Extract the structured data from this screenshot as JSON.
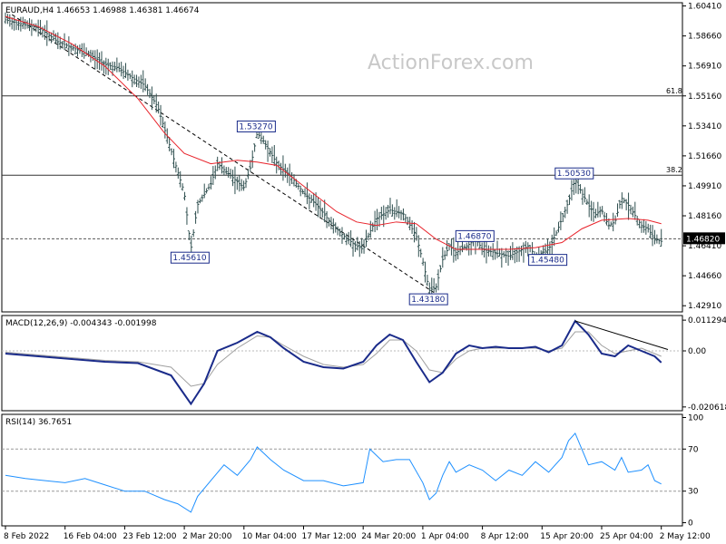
{
  "chart_data": [
    {
      "type": "candlestick",
      "title": "EURAUD,H4  1.46653 1.46988 1.46381 1.46674",
      "watermark": "ActionForex.com",
      "ylim": [
        1.4255,
        1.606
      ],
      "yticks": [
        1.6041,
        1.5866,
        1.5691,
        1.5516,
        1.5341,
        1.5166,
        1.4991,
        1.4816,
        1.4641,
        1.4466,
        1.4291
      ],
      "yticks_labels": [
        "1.60410",
        "1.58660",
        "1.56910",
        "1.55160",
        "1.53410",
        "1.51660",
        "1.49910",
        "1.48160",
        "1.46410",
        "1.44660",
        "1.42910"
      ],
      "current_price": 1.4682,
      "current_price_label": "1.46820",
      "x_index_range": [
        0,
        100
      ],
      "xticks": [
        {
          "label": "8 Feb 2022",
          "i": 0
        },
        {
          "label": "16 Feb 04:00",
          "i": 9
        },
        {
          "label": "23 Feb 12:00",
          "i": 18
        },
        {
          "label": "2 Mar 20:00",
          "i": 27
        },
        {
          "label": "10 Mar 04:00",
          "i": 36
        },
        {
          "label": "17 Mar 12:00",
          "i": 45
        },
        {
          "label": "24 Mar 20:00",
          "i": 54
        },
        {
          "label": "1 Apr 04:00",
          "i": 63
        },
        {
          "label": "8 Apr 12:00",
          "i": 72
        },
        {
          "label": "15 Apr 20:00",
          "i": 81
        },
        {
          "label": "25 Apr 04:00",
          "i": 90
        },
        {
          "label": "2 May 12:00",
          "i": 99
        }
      ],
      "price_path": [
        [
          0,
          1.596
        ],
        [
          3,
          1.593
        ],
        [
          5,
          1.5915
        ],
        [
          8,
          1.583
        ],
        [
          10,
          1.58
        ],
        [
          13,
          1.575
        ],
        [
          15,
          1.57
        ],
        [
          17,
          1.568
        ],
        [
          20,
          1.56
        ],
        [
          21,
          1.558
        ],
        [
          23,
          1.545
        ],
        [
          25,
          1.52
        ],
        [
          27,
          1.495
        ],
        [
          28,
          1.462
        ],
        [
          29,
          1.488
        ],
        [
          31,
          1.5
        ],
        [
          32,
          1.512
        ],
        [
          34,
          1.505
        ],
        [
          36,
          1.498
        ],
        [
          37,
          1.51
        ],
        [
          38,
          1.53
        ],
        [
          39,
          1.525
        ],
        [
          41,
          1.512
        ],
        [
          43,
          1.505
        ],
        [
          45,
          1.495
        ],
        [
          47,
          1.488
        ],
        [
          49,
          1.478
        ],
        [
          51,
          1.47
        ],
        [
          53,
          1.464
        ],
        [
          54,
          1.462
        ],
        [
          55,
          1.472
        ],
        [
          56,
          1.48
        ],
        [
          58,
          1.485
        ],
        [
          60,
          1.483
        ],
        [
          62,
          1.47
        ],
        [
          63,
          1.455
        ],
        [
          64,
          1.438
        ],
        [
          65,
          1.44
        ],
        [
          66,
          1.456
        ],
        [
          67,
          1.464
        ],
        [
          68,
          1.46
        ],
        [
          70,
          1.465
        ],
        [
          71,
          1.468
        ],
        [
          72,
          1.462
        ],
        [
          74,
          1.46
        ],
        [
          76,
          1.458
        ],
        [
          78,
          1.462
        ],
        [
          79,
          1.464
        ],
        [
          80,
          1.458
        ],
        [
          82,
          1.462
        ],
        [
          83,
          1.47
        ],
        [
          85,
          1.49
        ],
        [
          86,
          1.503
        ],
        [
          87,
          1.495
        ],
        [
          88,
          1.488
        ],
        [
          89,
          1.482
        ],
        [
          90,
          1.485
        ],
        [
          91,
          1.476
        ],
        [
          92,
          1.478
        ],
        [
          93,
          1.492
        ],
        [
          94,
          1.488
        ],
        [
          95,
          1.482
        ],
        [
          96,
          1.476
        ],
        [
          97,
          1.474
        ],
        [
          98,
          1.468
        ],
        [
          99,
          1.4667
        ]
      ],
      "moving_average": {
        "color": "#e8222a",
        "points": [
          [
            0,
            1.598
          ],
          [
            5,
            1.592
          ],
          [
            10,
            1.582
          ],
          [
            15,
            1.569
          ],
          [
            20,
            1.55
          ],
          [
            24,
            1.53
          ],
          [
            27,
            1.518
          ],
          [
            31,
            1.512
          ],
          [
            35,
            1.514
          ],
          [
            38,
            1.513
          ],
          [
            41,
            1.511
          ],
          [
            44,
            1.502
          ],
          [
            47,
            1.493
          ],
          [
            50,
            1.484
          ],
          [
            53,
            1.478
          ],
          [
            56,
            1.476
          ],
          [
            59,
            1.478
          ],
          [
            62,
            1.477
          ],
          [
            65,
            1.468
          ],
          [
            68,
            1.462
          ],
          [
            72,
            1.462
          ],
          [
            76,
            1.462
          ],
          [
            80,
            1.463
          ],
          [
            84,
            1.466
          ],
          [
            87,
            1.474
          ],
          [
            90,
            1.479
          ],
          [
            94,
            1.48
          ],
          [
            97,
            1.479
          ],
          [
            99,
            1.477
          ]
        ]
      },
      "fib_levels": [
        {
          "label": "61.8",
          "price": 1.5516
        },
        {
          "label": "38.2",
          "price": 1.5053
        }
      ],
      "trend_line": {
        "points": [
          [
            1,
            1.599
          ],
          [
            65,
            1.436
          ]
        ]
      },
      "price_labels": [
        {
          "text": "1.53270",
          "i": 38,
          "price": 1.5327
        },
        {
          "text": "1.45610",
          "i": 28,
          "price": 1.4561
        },
        {
          "text": "1.43180",
          "i": 64,
          "price": 1.4318
        },
        {
          "text": "1.46870",
          "i": 71,
          "price": 1.4687
        },
        {
          "text": "1.45480",
          "i": 82,
          "price": 1.4548
        },
        {
          "text": "1.50530",
          "i": 86,
          "price": 1.5053
        }
      ]
    },
    {
      "type": "line",
      "title": "MACD(12,26,9) -0.004343 -0.001998",
      "ylim": [
        -0.022,
        0.013
      ],
      "yticks_labels": [
        "0.011294",
        "0.00",
        "-0.020618"
      ],
      "yticks": [
        0.011294,
        0.0,
        -0.020618
      ],
      "series": [
        {
          "color": "#1a2b8a",
          "values": [
            [
              0,
              -0.001
            ],
            [
              5,
              -0.002
            ],
            [
              10,
              -0.003
            ],
            [
              15,
              -0.004
            ],
            [
              20,
              -0.0045
            ],
            [
              25,
              -0.009
            ],
            [
              28,
              -0.0195
            ],
            [
              30,
              -0.012
            ],
            [
              32,
              0.0
            ],
            [
              35,
              0.003
            ],
            [
              38,
              0.007
            ],
            [
              40,
              0.005
            ],
            [
              42,
              0.001
            ],
            [
              45,
              -0.004
            ],
            [
              48,
              -0.006
            ],
            [
              51,
              -0.0065
            ],
            [
              54,
              -0.004
            ],
            [
              56,
              0.002
            ],
            [
              58,
              0.006
            ],
            [
              60,
              0.004
            ],
            [
              62,
              -0.004
            ],
            [
              64,
              -0.0115
            ],
            [
              66,
              -0.008
            ],
            [
              68,
              -0.001
            ],
            [
              70,
              0.002
            ],
            [
              72,
              0.001
            ],
            [
              74,
              0.0015
            ],
            [
              76,
              0.001
            ],
            [
              78,
              0.001
            ],
            [
              80,
              0.0015
            ],
            [
              82,
              -0.0005
            ],
            [
              84,
              0.002
            ],
            [
              86,
              0.011
            ],
            [
              88,
              0.006
            ],
            [
              90,
              -0.001
            ],
            [
              92,
              -0.002
            ],
            [
              94,
              0.002
            ],
            [
              96,
              0.0
            ],
            [
              98,
              -0.002
            ],
            [
              99,
              -0.0043
            ]
          ]
        },
        {
          "color": "#a0a0a0",
          "values": [
            [
              0,
              -0.0005
            ],
            [
              5,
              -0.0015
            ],
            [
              10,
              -0.0025
            ],
            [
              15,
              -0.0035
            ],
            [
              20,
              -0.004
            ],
            [
              25,
              -0.006
            ],
            [
              28,
              -0.013
            ],
            [
              30,
              -0.012
            ],
            [
              32,
              -0.005
            ],
            [
              35,
              0.001
            ],
            [
              38,
              0.0055
            ],
            [
              40,
              0.005
            ],
            [
              42,
              0.002
            ],
            [
              45,
              -0.002
            ],
            [
              48,
              -0.005
            ],
            [
              51,
              -0.006
            ],
            [
              54,
              -0.005
            ],
            [
              56,
              -0.001
            ],
            [
              58,
              0.004
            ],
            [
              60,
              0.004
            ],
            [
              62,
              0.0
            ],
            [
              64,
              -0.007
            ],
            [
              66,
              -0.008
            ],
            [
              68,
              -0.003
            ],
            [
              70,
              0.0
            ],
            [
              72,
              0.001
            ],
            [
              74,
              0.001
            ],
            [
              76,
              0.001
            ],
            [
              78,
              0.001
            ],
            [
              80,
              0.001
            ],
            [
              82,
              0.0
            ],
            [
              84,
              0.001
            ],
            [
              86,
              0.007
            ],
            [
              88,
              0.007
            ],
            [
              90,
              0.002
            ],
            [
              92,
              -0.001
            ],
            [
              94,
              0.0
            ],
            [
              96,
              0.001
            ],
            [
              98,
              -0.001
            ],
            [
              99,
              -0.002
            ]
          ]
        }
      ],
      "trend_line": {
        "points": [
          [
            86,
            0.011
          ],
          [
            100,
            0.0005
          ]
        ]
      }
    },
    {
      "type": "line",
      "title": "RSI(14) 36.7651",
      "ylim": [
        0,
        100
      ],
      "yticks": [
        100,
        70,
        30,
        0
      ],
      "yticks_labels": [
        "100",
        "70",
        "30",
        "0"
      ],
      "levels": [
        70,
        30
      ],
      "series": [
        {
          "color": "#1e90ff",
          "values": [
            [
              0,
              45
            ],
            [
              3,
              42
            ],
            [
              6,
              40
            ],
            [
              9,
              38
            ],
            [
              12,
              42
            ],
            [
              15,
              36
            ],
            [
              18,
              30
            ],
            [
              21,
              30
            ],
            [
              24,
              22
            ],
            [
              26,
              18
            ],
            [
              28,
              10
            ],
            [
              29,
              25
            ],
            [
              31,
              40
            ],
            [
              33,
              55
            ],
            [
              35,
              45
            ],
            [
              37,
              60
            ],
            [
              38,
              72
            ],
            [
              40,
              60
            ],
            [
              42,
              50
            ],
            [
              45,
              40
            ],
            [
              48,
              40
            ],
            [
              51,
              35
            ],
            [
              54,
              38
            ],
            [
              55,
              70
            ],
            [
              57,
              58
            ],
            [
              59,
              60
            ],
            [
              61,
              60
            ],
            [
              63,
              38
            ],
            [
              64,
              22
            ],
            [
              65,
              28
            ],
            [
              66,
              45
            ],
            [
              67,
              58
            ],
            [
              68,
              48
            ],
            [
              70,
              55
            ],
            [
              72,
              50
            ],
            [
              74,
              40
            ],
            [
              76,
              50
            ],
            [
              78,
              45
            ],
            [
              80,
              58
            ],
            [
              82,
              48
            ],
            [
              84,
              62
            ],
            [
              85,
              78
            ],
            [
              86,
              85
            ],
            [
              87,
              70
            ],
            [
              88,
              55
            ],
            [
              90,
              58
            ],
            [
              92,
              50
            ],
            [
              93,
              62
            ],
            [
              94,
              48
            ],
            [
              96,
              50
            ],
            [
              97,
              55
            ],
            [
              98,
              40
            ],
            [
              99,
              36.8
            ]
          ]
        }
      ]
    }
  ]
}
